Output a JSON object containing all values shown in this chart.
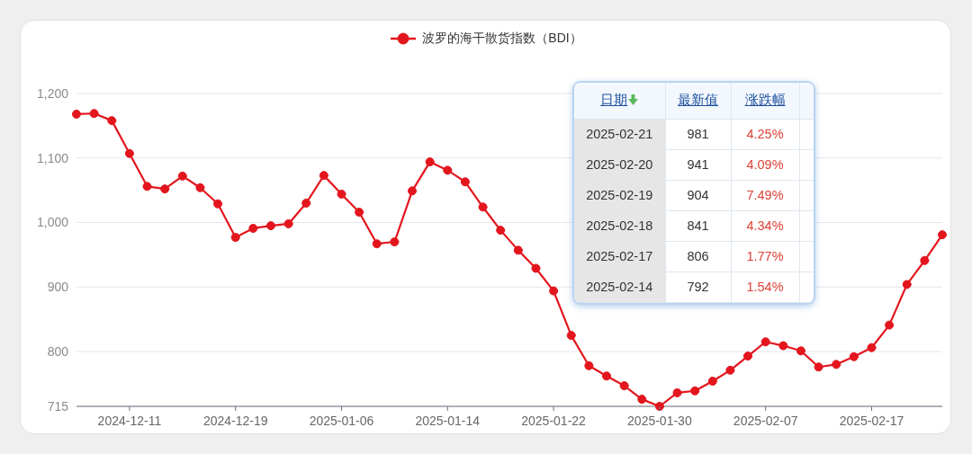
{
  "chart_data": [
    {
      "type": "line",
      "categories": [
        null,
        null,
        null,
        "2024-12-11",
        null,
        null,
        null,
        null,
        null,
        "2024-12-19",
        null,
        null,
        null,
        null,
        null,
        "2025-01-06",
        null,
        null,
        null,
        null,
        null,
        "2025-01-14",
        null,
        null,
        null,
        null,
        null,
        "2025-01-22",
        null,
        null,
        null,
        null,
        null,
        "2025-01-30",
        null,
        null,
        null,
        null,
        null,
        "2025-02-07",
        null,
        null,
        null,
        null,
        null,
        "2025-02-17",
        null,
        null,
        null,
        null
      ],
      "series": [
        {
          "name": "波罗的海干散货指数（BDI）",
          "color": "#e3161d",
          "values": [
            1168,
            1169,
            1158,
            1107,
            1056,
            1052,
            1072,
            1054,
            1029,
            977,
            991,
            995,
            998,
            1030,
            1073,
            1044,
            1016,
            967,
            970,
            1049,
            1094,
            1081,
            1063,
            1024,
            988,
            957,
            929,
            894,
            825,
            778,
            762,
            747,
            726,
            715,
            736,
            739,
            754,
            771,
            793,
            815,
            809,
            801,
            776,
            780,
            792,
            806,
            841,
            904,
            941,
            981
          ]
        }
      ],
      "ylim": [
        715,
        1200
      ],
      "yticks": [
        715,
        800,
        900,
        {
          "value": 1000,
          "label": "1,000"
        },
        {
          "value": 1100,
          "label": "1,100"
        },
        {
          "value": 1200,
          "label": "1,200"
        }
      ],
      "grid": "y",
      "legend": "top",
      "marker": "circle",
      "line_style": "solid"
    },
    {
      "type": "other",
      "xlabel": "日期",
      "categories": [
        "2025-02-21",
        "2025-02-20",
        "2025-02-19",
        "2025-02-18",
        "2025-02-17",
        "2025-02-14"
      ],
      "series": [
        {
          "name": "最新值",
          "values": [
            981,
            941,
            904,
            841,
            806,
            792
          ]
        },
        {
          "name": "涨跌幅",
          "values": [
            4.25,
            4.09,
            7.49,
            4.34,
            1.77,
            1.54
          ],
          "value_labels": [
            "4.25%",
            "4.09%",
            "7.49%",
            "4.34%",
            "1.77%",
            "1.54%"
          ]
        }
      ],
      "data_labels": true
    }
  ]
}
